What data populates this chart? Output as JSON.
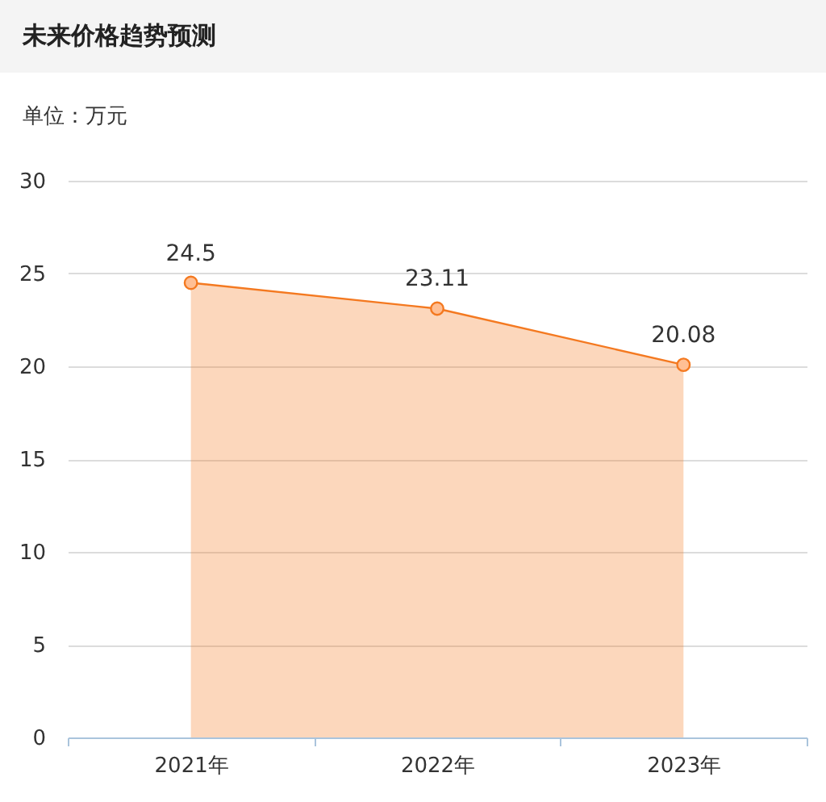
{
  "chart_data": {
    "type": "area",
    "title": "未来价格趋势预测",
    "subtitle": "单位：万元",
    "categories": [
      "2021年",
      "2022年",
      "2023年"
    ],
    "series": [
      {
        "color": "#f47920",
        "values": [
          24.5,
          23.11,
          20.08
        ]
      }
    ],
    "ylim": [
      0,
      30
    ],
    "yticks": [
      0,
      5,
      10,
      15,
      20,
      25,
      30
    ],
    "grid": "y",
    "marker": "circle",
    "data_labels": true
  }
}
